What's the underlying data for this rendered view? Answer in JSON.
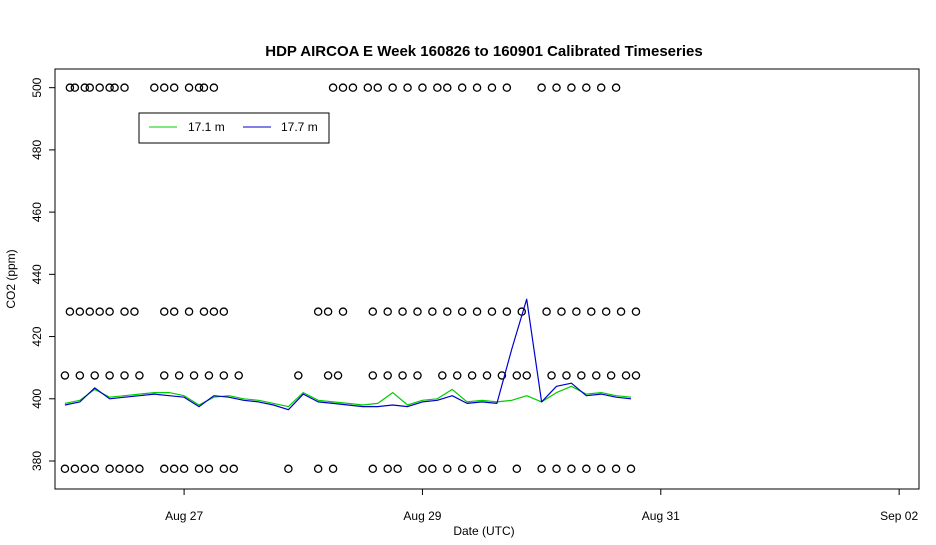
{
  "chart_data": {
    "type": "line",
    "title": "HDP AIRCOA E  Week 160826 to 160901  Calibrated Timeseries",
    "xlabel": "Date (UTC)",
    "ylabel": "CO2 (ppm)",
    "x_ticks": [
      "Aug 27",
      "Aug 29",
      "Aug 31",
      "Sep 02"
    ],
    "y_ticks": [
      "380",
      "400",
      "420",
      "440",
      "460",
      "480",
      "500"
    ],
    "xlim": [
      "2016-08-25T22:00",
      "2016-09-02T04:00"
    ],
    "ylim": [
      371,
      506
    ],
    "legend_position": "top-left",
    "colors": {
      "s1": "#00cc00",
      "s2": "#0000cc",
      "points": "#000000"
    },
    "series": [
      {
        "name": "17.1 m",
        "color": "#00cc00",
        "x": [
          "2016-08-26T00:00",
          "2016-08-26T03:00",
          "2016-08-26T06:00",
          "2016-08-26T09:00",
          "2016-08-26T12:00",
          "2016-08-26T15:00",
          "2016-08-26T18:00",
          "2016-08-26T21:00",
          "2016-08-27T00:00",
          "2016-08-27T03:00",
          "2016-08-27T06:00",
          "2016-08-27T09:00",
          "2016-08-27T12:00",
          "2016-08-27T15:00",
          "2016-08-27T18:00",
          "2016-08-27T21:00",
          "2016-08-28T00:00",
          "2016-08-28T03:00",
          "2016-08-28T06:00",
          "2016-08-28T09:00",
          "2016-08-28T12:00",
          "2016-08-28T15:00",
          "2016-08-28T18:00",
          "2016-08-28T21:00",
          "2016-08-29T00:00",
          "2016-08-29T03:00",
          "2016-08-29T06:00",
          "2016-08-29T09:00",
          "2016-08-29T12:00",
          "2016-08-29T15:00",
          "2016-08-29T18:00",
          "2016-08-29T21:00",
          "2016-08-30T00:00",
          "2016-08-30T03:00",
          "2016-08-30T06:00",
          "2016-08-30T09:00",
          "2016-08-30T12:00",
          "2016-08-30T15:00",
          "2016-08-30T18:00"
        ],
        "y": [
          398.5,
          399.5,
          403,
          400.5,
          401,
          401.5,
          402,
          402,
          401,
          398,
          400.5,
          401,
          400,
          399.5,
          398.5,
          397.5,
          402,
          399.5,
          399,
          398.5,
          398,
          398.5,
          402,
          398,
          399.5,
          400,
          403,
          399,
          399.5,
          399,
          399.5,
          401,
          399,
          402,
          404,
          401.5,
          402,
          401,
          400.5
        ]
      },
      {
        "name": "17.7 m",
        "color": "#0000cc",
        "x": [
          "2016-08-26T00:00",
          "2016-08-26T03:00",
          "2016-08-26T06:00",
          "2016-08-26T09:00",
          "2016-08-26T12:00",
          "2016-08-26T15:00",
          "2016-08-26T18:00",
          "2016-08-26T21:00",
          "2016-08-27T00:00",
          "2016-08-27T03:00",
          "2016-08-27T06:00",
          "2016-08-27T09:00",
          "2016-08-27T12:00",
          "2016-08-27T15:00",
          "2016-08-27T18:00",
          "2016-08-27T21:00",
          "2016-08-28T00:00",
          "2016-08-28T03:00",
          "2016-08-28T06:00",
          "2016-08-28T09:00",
          "2016-08-28T12:00",
          "2016-08-28T15:00",
          "2016-08-28T18:00",
          "2016-08-28T21:00",
          "2016-08-29T00:00",
          "2016-08-29T03:00",
          "2016-08-29T06:00",
          "2016-08-29T09:00",
          "2016-08-29T12:00",
          "2016-08-29T15:00",
          "2016-08-29T18:00",
          "2016-08-29T21:00",
          "2016-08-30T00:00",
          "2016-08-30T03:00",
          "2016-08-30T06:00",
          "2016-08-30T09:00",
          "2016-08-30T12:00",
          "2016-08-30T15:00",
          "2016-08-30T18:00"
        ],
        "y": [
          398,
          399,
          403.5,
          400,
          400.5,
          401,
          401.5,
          401,
          400.5,
          397.5,
          401,
          400.5,
          399.5,
          399,
          398,
          396.5,
          401.5,
          399,
          398.5,
          398,
          397.5,
          397.5,
          398,
          397.5,
          399,
          399.5,
          401,
          398.5,
          399,
          398.5,
          416,
          432,
          399,
          404,
          405,
          401,
          401.5,
          400.5,
          400
        ]
      }
    ],
    "reference_points": {
      "color": "#000000",
      "levels": [
        {
          "value": 500,
          "x": [
            "2016-08-26T01:00",
            "2016-08-26T02:00",
            "2016-08-26T04:00",
            "2016-08-26T05:00",
            "2016-08-26T07:00",
            "2016-08-26T09:00",
            "2016-08-26T10:00",
            "2016-08-26T12:00",
            "2016-08-26T18:00",
            "2016-08-26T20:00",
            "2016-08-26T22:00",
            "2016-08-27T01:00",
            "2016-08-27T03:00",
            "2016-08-27T04:00",
            "2016-08-27T06:00",
            "2016-08-28T06:00",
            "2016-08-28T08:00",
            "2016-08-28T10:00",
            "2016-08-28T13:00",
            "2016-08-28T15:00",
            "2016-08-28T18:00",
            "2016-08-28T21:00",
            "2016-08-29T00:00",
            "2016-08-29T03:00",
            "2016-08-29T05:00",
            "2016-08-29T08:00",
            "2016-08-29T11:00",
            "2016-08-29T14:00",
            "2016-08-29T17:00",
            "2016-08-30T00:00",
            "2016-08-30T03:00",
            "2016-08-30T06:00",
            "2016-08-30T09:00",
            "2016-08-30T12:00",
            "2016-08-30T15:00"
          ]
        },
        {
          "value": 428,
          "x": [
            "2016-08-26T01:00",
            "2016-08-26T03:00",
            "2016-08-26T05:00",
            "2016-08-26T07:00",
            "2016-08-26T09:00",
            "2016-08-26T12:00",
            "2016-08-26T14:00",
            "2016-08-26T20:00",
            "2016-08-26T22:00",
            "2016-08-27T01:00",
            "2016-08-27T04:00",
            "2016-08-27T06:00",
            "2016-08-27T08:00",
            "2016-08-28T03:00",
            "2016-08-28T05:00",
            "2016-08-28T08:00",
            "2016-08-28T14:00",
            "2016-08-28T17:00",
            "2016-08-28T20:00",
            "2016-08-28T23:00",
            "2016-08-29T02:00",
            "2016-08-29T05:00",
            "2016-08-29T08:00",
            "2016-08-29T11:00",
            "2016-08-29T14:00",
            "2016-08-29T17:00",
            "2016-08-29T20:00",
            "2016-08-30T01:00",
            "2016-08-30T04:00",
            "2016-08-30T07:00",
            "2016-08-30T10:00",
            "2016-08-30T13:00",
            "2016-08-30T16:00",
            "2016-08-30T19:00"
          ]
        },
        {
          "value": 407.5,
          "x": [
            "2016-08-26T00:00",
            "2016-08-26T03:00",
            "2016-08-26T06:00",
            "2016-08-26T09:00",
            "2016-08-26T12:00",
            "2016-08-26T15:00",
            "2016-08-26T20:00",
            "2016-08-26T23:00",
            "2016-08-27T02:00",
            "2016-08-27T05:00",
            "2016-08-27T08:00",
            "2016-08-27T11:00",
            "2016-08-27T23:00",
            "2016-08-28T05:00",
            "2016-08-28T07:00",
            "2016-08-28T14:00",
            "2016-08-28T17:00",
            "2016-08-28T20:00",
            "2016-08-28T23:00",
            "2016-08-29T04:00",
            "2016-08-29T07:00",
            "2016-08-29T10:00",
            "2016-08-29T13:00",
            "2016-08-29T16:00",
            "2016-08-29T19:00",
            "2016-08-29T21:00",
            "2016-08-30T02:00",
            "2016-08-30T05:00",
            "2016-08-30T08:00",
            "2016-08-30T11:00",
            "2016-08-30T14:00",
            "2016-08-30T17:00",
            "2016-08-30T19:00"
          ]
        },
        {
          "value": 377.5,
          "x": [
            "2016-08-26T00:00",
            "2016-08-26T02:00",
            "2016-08-26T04:00",
            "2016-08-26T06:00",
            "2016-08-26T09:00",
            "2016-08-26T11:00",
            "2016-08-26T13:00",
            "2016-08-26T15:00",
            "2016-08-26T20:00",
            "2016-08-26T22:00",
            "2016-08-27T00:00",
            "2016-08-27T03:00",
            "2016-08-27T05:00",
            "2016-08-27T08:00",
            "2016-08-27T10:00",
            "2016-08-27T21:00",
            "2016-08-28T03:00",
            "2016-08-28T06:00",
            "2016-08-28T14:00",
            "2016-08-28T17:00",
            "2016-08-28T19:00",
            "2016-08-29T00:00",
            "2016-08-29T02:00",
            "2016-08-29T05:00",
            "2016-08-29T08:00",
            "2016-08-29T11:00",
            "2016-08-29T14:00",
            "2016-08-29T19:00",
            "2016-08-30T00:00",
            "2016-08-30T03:00",
            "2016-08-30T06:00",
            "2016-08-30T09:00",
            "2016-08-30T12:00",
            "2016-08-30T15:00",
            "2016-08-30T18:00"
          ]
        }
      ]
    }
  }
}
